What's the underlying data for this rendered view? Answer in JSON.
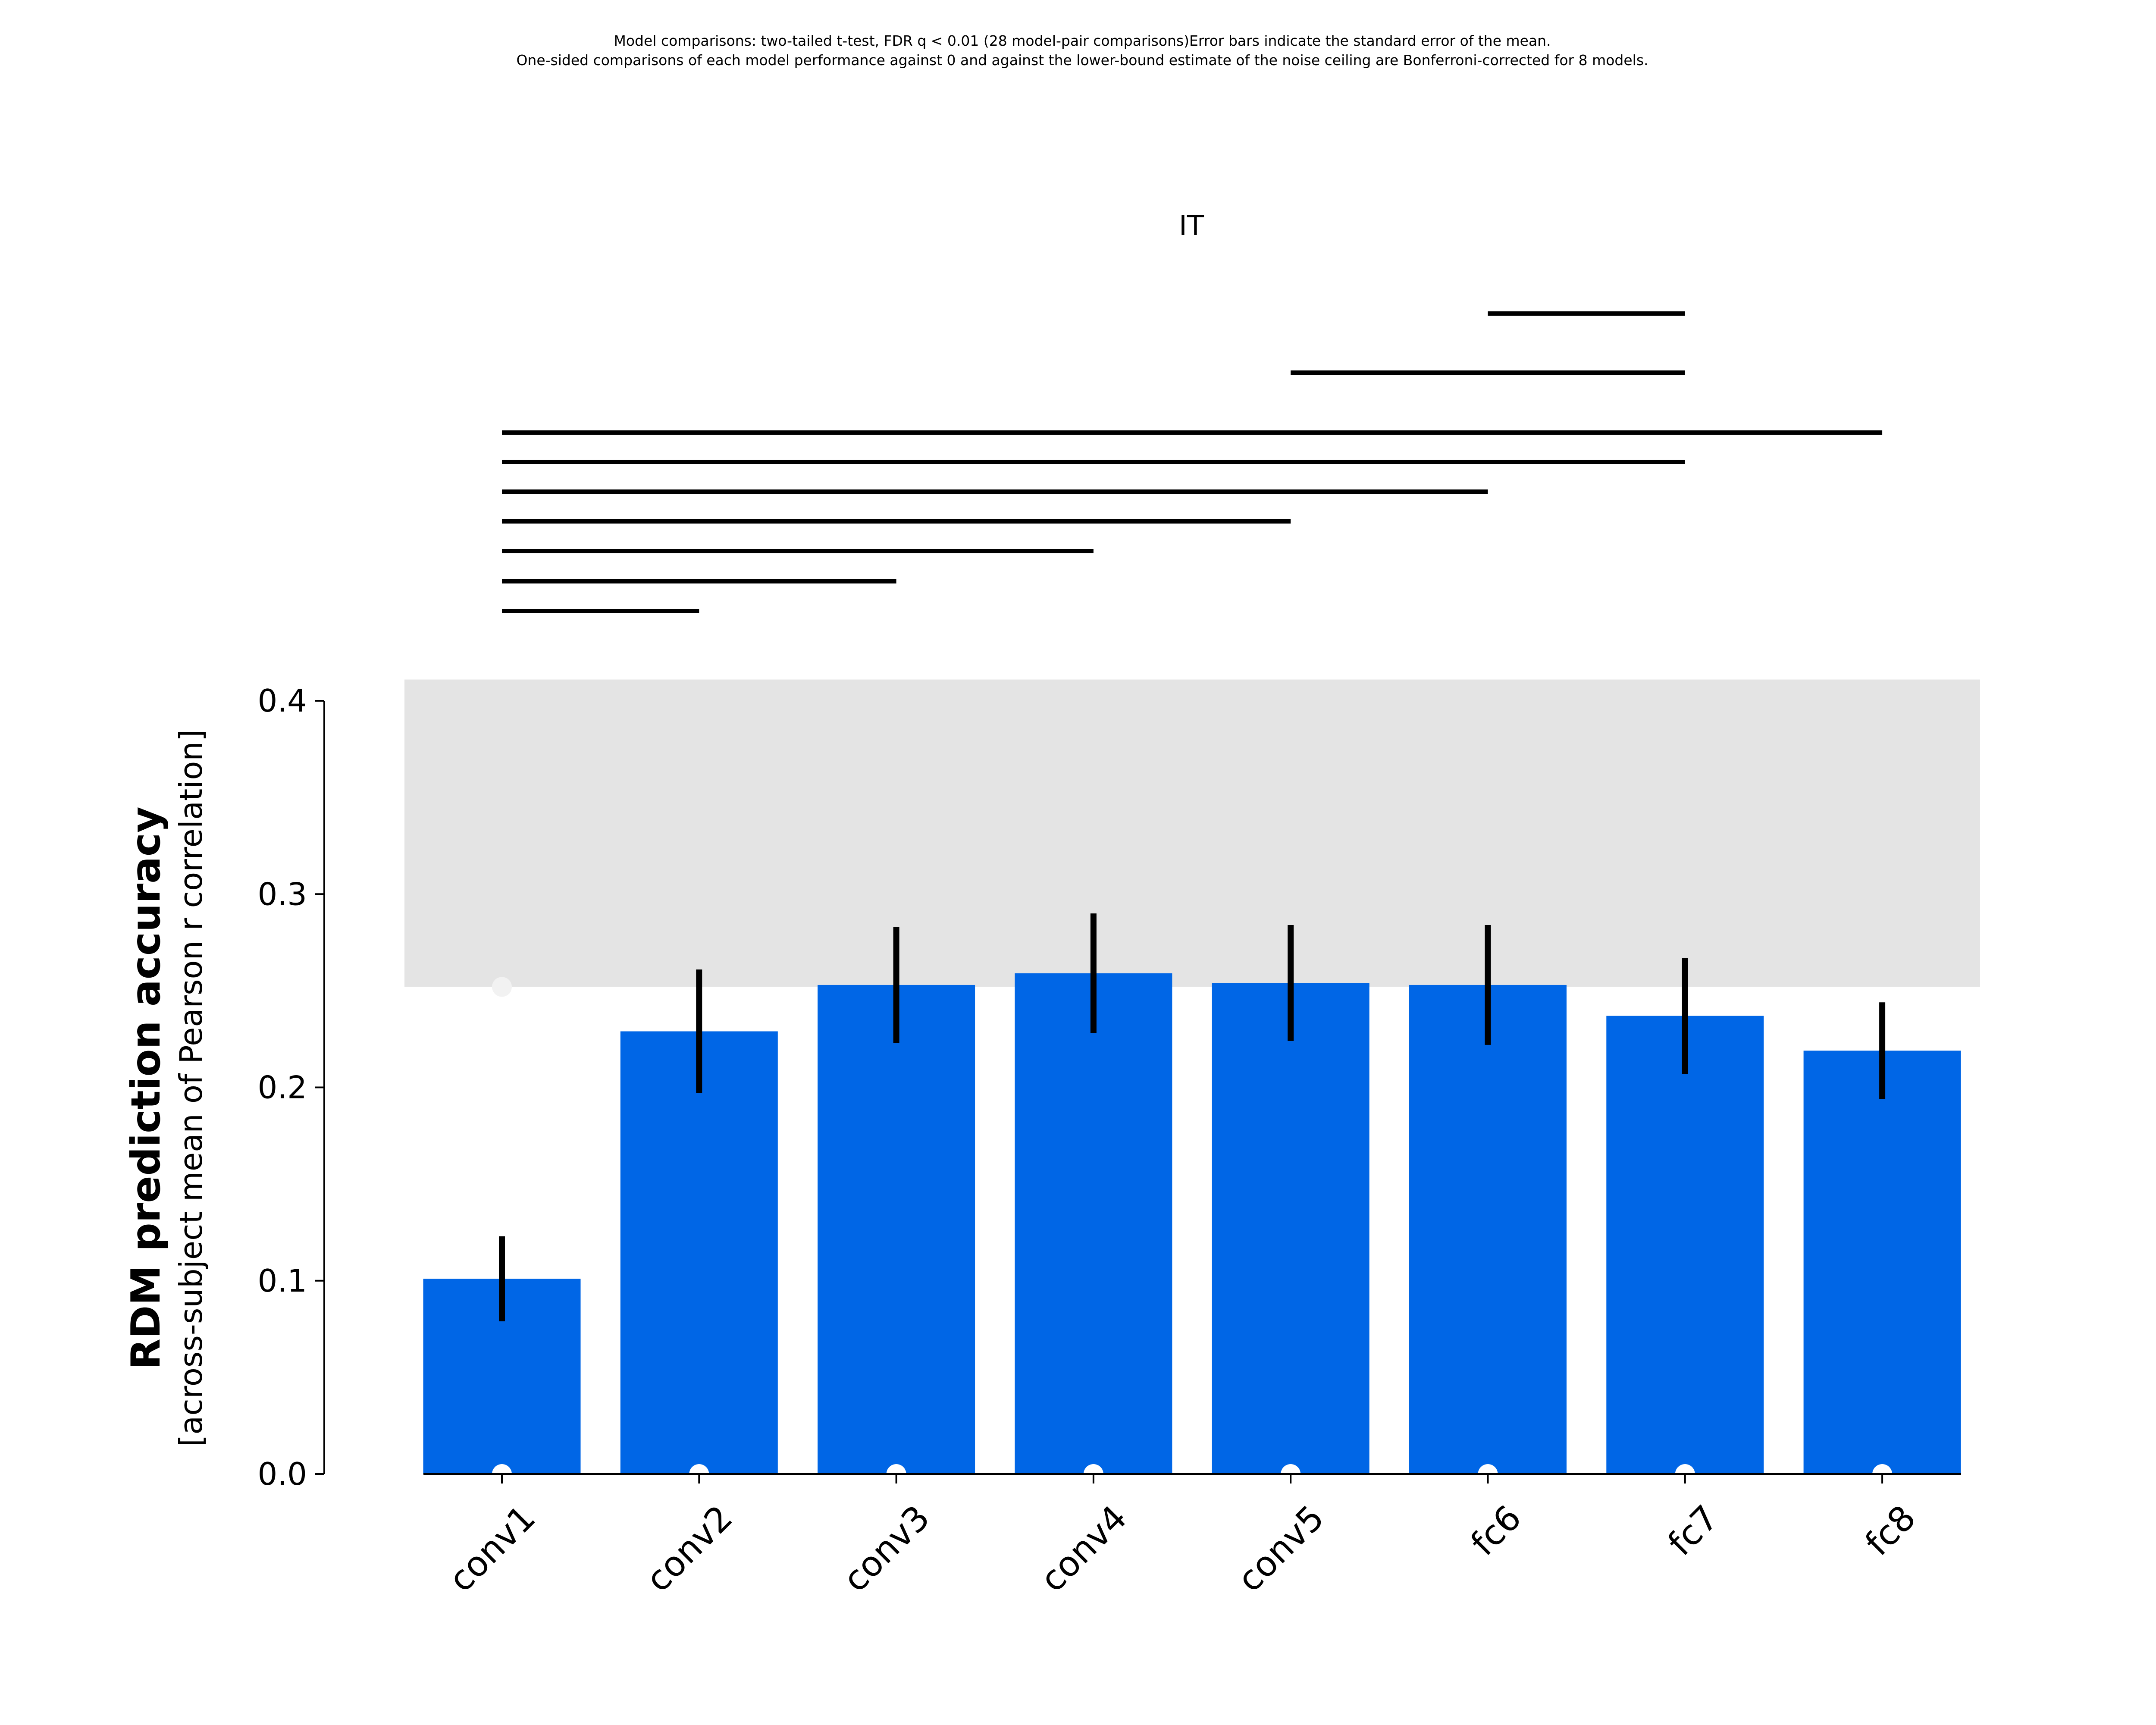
{
  "chart_data": {
    "type": "bar",
    "notes": [
      "Model comparisons: two-tailed t-test, FDR q < 0.01 (28 model-pair comparisons)Error bars indicate the standard error of the mean.",
      "One-sided comparisons of each model performance against 0 and against the lower-bound estimate of the noise ceiling are Bonferroni-corrected for 8 models."
    ],
    "title": "IT",
    "ylabel": "RDM prediction accuracy",
    "ylabel_sub": "[across-subject mean of Pearson r correlation]",
    "categories": [
      "conv1",
      "conv2",
      "conv3",
      "conv4",
      "conv5",
      "fc6",
      "fc7",
      "fc8"
    ],
    "values": [
      0.101,
      0.229,
      0.253,
      0.259,
      0.254,
      0.253,
      0.237,
      0.219
    ],
    "sem": [
      0.022,
      0.032,
      0.03,
      0.031,
      0.03,
      0.031,
      0.03,
      0.025
    ],
    "ylim": [
      0,
      0.4
    ],
    "yticks": [
      0.0,
      0.1,
      0.2,
      0.3,
      0.4
    ],
    "ytick_labels": [
      "0.0",
      "0.1",
      "0.2",
      "0.3",
      "0.4"
    ],
    "noise_ceiling": {
      "lower": 0.252,
      "upper": 0.411
    },
    "significance_lines": [
      {
        "from": "fc6",
        "to": "fc7"
      },
      {
        "from": "conv5",
        "to": "fc7"
      },
      {
        "from": "conv1",
        "to": "fc8"
      },
      {
        "from": "conv1",
        "to": "fc7"
      },
      {
        "from": "conv1",
        "to": "fc6"
      },
      {
        "from": "conv1",
        "to": "conv5"
      },
      {
        "from": "conv1",
        "to": "conv4"
      },
      {
        "from": "conv1",
        "to": "conv3"
      },
      {
        "from": "conv1",
        "to": "conv2"
      }
    ],
    "below_ceiling_marker": [
      "conv1"
    ],
    "above_zero_marker": [
      "conv1",
      "conv2",
      "conv3",
      "conv4",
      "conv5",
      "fc6",
      "fc7",
      "fc8"
    ],
    "grid": false,
    "colors": {
      "bar": "#0066e6",
      "error_bar": "#000000",
      "noise_ceiling": "#e4e4e4",
      "sig_line": "#000000",
      "marker_zero": "#ffffff",
      "marker_ceiling": "#f2f2f2"
    }
  }
}
